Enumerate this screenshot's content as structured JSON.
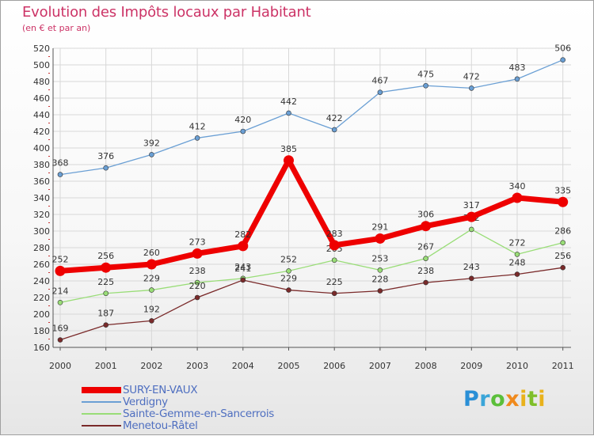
{
  "header": {
    "title": "Evolution des Impôts locaux par Habitant",
    "subtitle": "(en € et par an)"
  },
  "logo_text": "Proxiti",
  "chart_data": {
    "type": "line",
    "title": "Evolution des Impôts locaux par Habitant",
    "subtitle": "(en € et par an)",
    "xlabel": "",
    "ylabel": "",
    "x": [
      "2000",
      "2001",
      "2002",
      "2003",
      "2004",
      "2005",
      "2006",
      "2007",
      "2008",
      "2009",
      "2010",
      "2011"
    ],
    "ylim": [
      160,
      520
    ],
    "yticks": [
      160,
      180,
      200,
      220,
      240,
      260,
      280,
      300,
      320,
      340,
      360,
      380,
      400,
      420,
      440,
      460,
      480,
      500,
      520
    ],
    "grid": true,
    "legend_position": "bottom-left",
    "series": [
      {
        "name": "SURY-EN-VAUX",
        "color": "#ee0000",
        "emphasis": true,
        "values": [
          252,
          256,
          260,
          273,
          282,
          385,
          283,
          291,
          306,
          317,
          340,
          335
        ]
      },
      {
        "name": "Verdigny",
        "color": "#6a9fd4",
        "emphasis": false,
        "values": [
          368,
          376,
          392,
          412,
          420,
          442,
          422,
          467,
          475,
          472,
          483,
          506
        ]
      },
      {
        "name": "Sainte-Gemme-en-Sancerrois",
        "color": "#99dd77",
        "emphasis": false,
        "values": [
          214,
          225,
          229,
          238,
          243,
          252,
          265,
          253,
          267,
          302,
          272,
          286
        ]
      },
      {
        "name": "Menetou-Râtel",
        "color": "#7a2a2a",
        "emphasis": false,
        "values": [
          169,
          187,
          192,
          220,
          241,
          229,
          225,
          228,
          238,
          243,
          248,
          256
        ]
      }
    ]
  }
}
